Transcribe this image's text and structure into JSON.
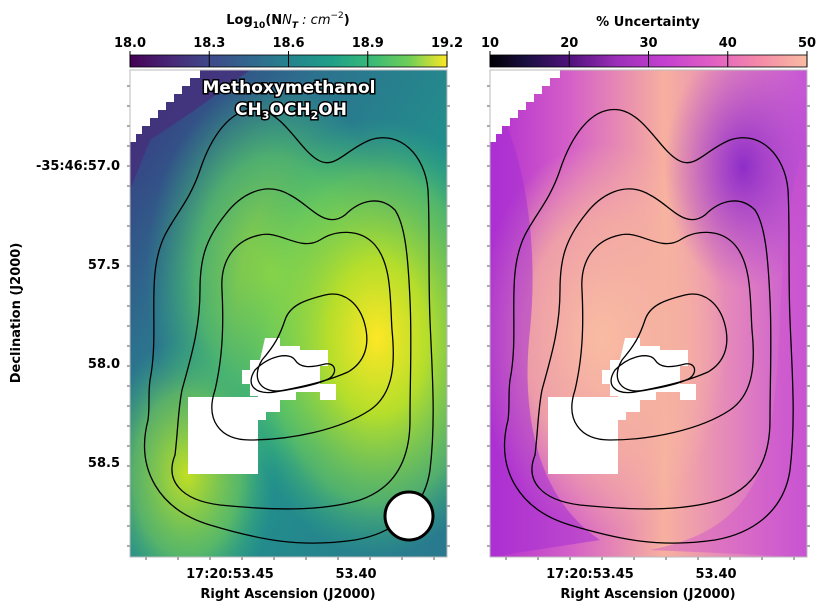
{
  "chart_data": [
    {
      "type": "heatmap",
      "colormap": "viridis",
      "title": "Methoxymethanol",
      "subtitle_formula": {
        "parts": [
          "CH",
          "3",
          "OCH",
          "2",
          "OH"
        ]
      },
      "colorbar": {
        "label_prefix": "Log",
        "label_sub": "10",
        "label_body": "(N",
        "label_body_sub": "T",
        "label_units": " : cm",
        "label_sup": "−2",
        "label_close": ")",
        "range": [
          18.0,
          19.2
        ],
        "ticks": [
          "18.0",
          "18.3",
          "18.6",
          "18.9",
          "19.2"
        ]
      },
      "xlabel": "Right Ascension (J2000)",
      "ylabel": "Declination (J2000)",
      "xticks": [
        "17:20:53.45",
        "53.40"
      ],
      "yticks": [
        "-35:46:57.0",
        "57.5",
        "58.0",
        "58.5"
      ],
      "contour_levels": 4,
      "beam": "circle, bottom-right"
    },
    {
      "type": "heatmap",
      "colormap": "magma",
      "colorbar": {
        "label": "% Uncertainty",
        "range": [
          10,
          50
        ],
        "ticks": [
          "10",
          "20",
          "30",
          "40",
          "50"
        ]
      },
      "xlabel": "Right Ascension (J2000)",
      "xticks": [
        "17:20:53.45",
        "53.40"
      ],
      "contour_levels": 4
    }
  ]
}
